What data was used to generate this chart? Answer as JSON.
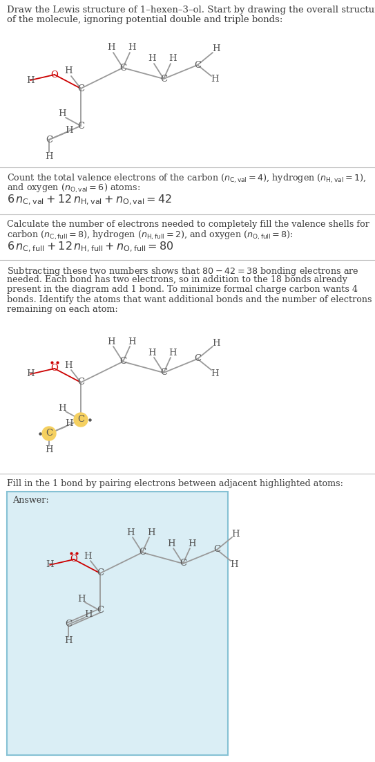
{
  "bg_color": "#ffffff",
  "text_color": "#3a3a3a",
  "bond_color": "#999999",
  "o_color": "#cc0000",
  "c_color": "#555555",
  "h_color": "#555555",
  "highlight_color": "#f5d060",
  "answer_bg": "#daeef5",
  "answer_border": "#85c1d4"
}
